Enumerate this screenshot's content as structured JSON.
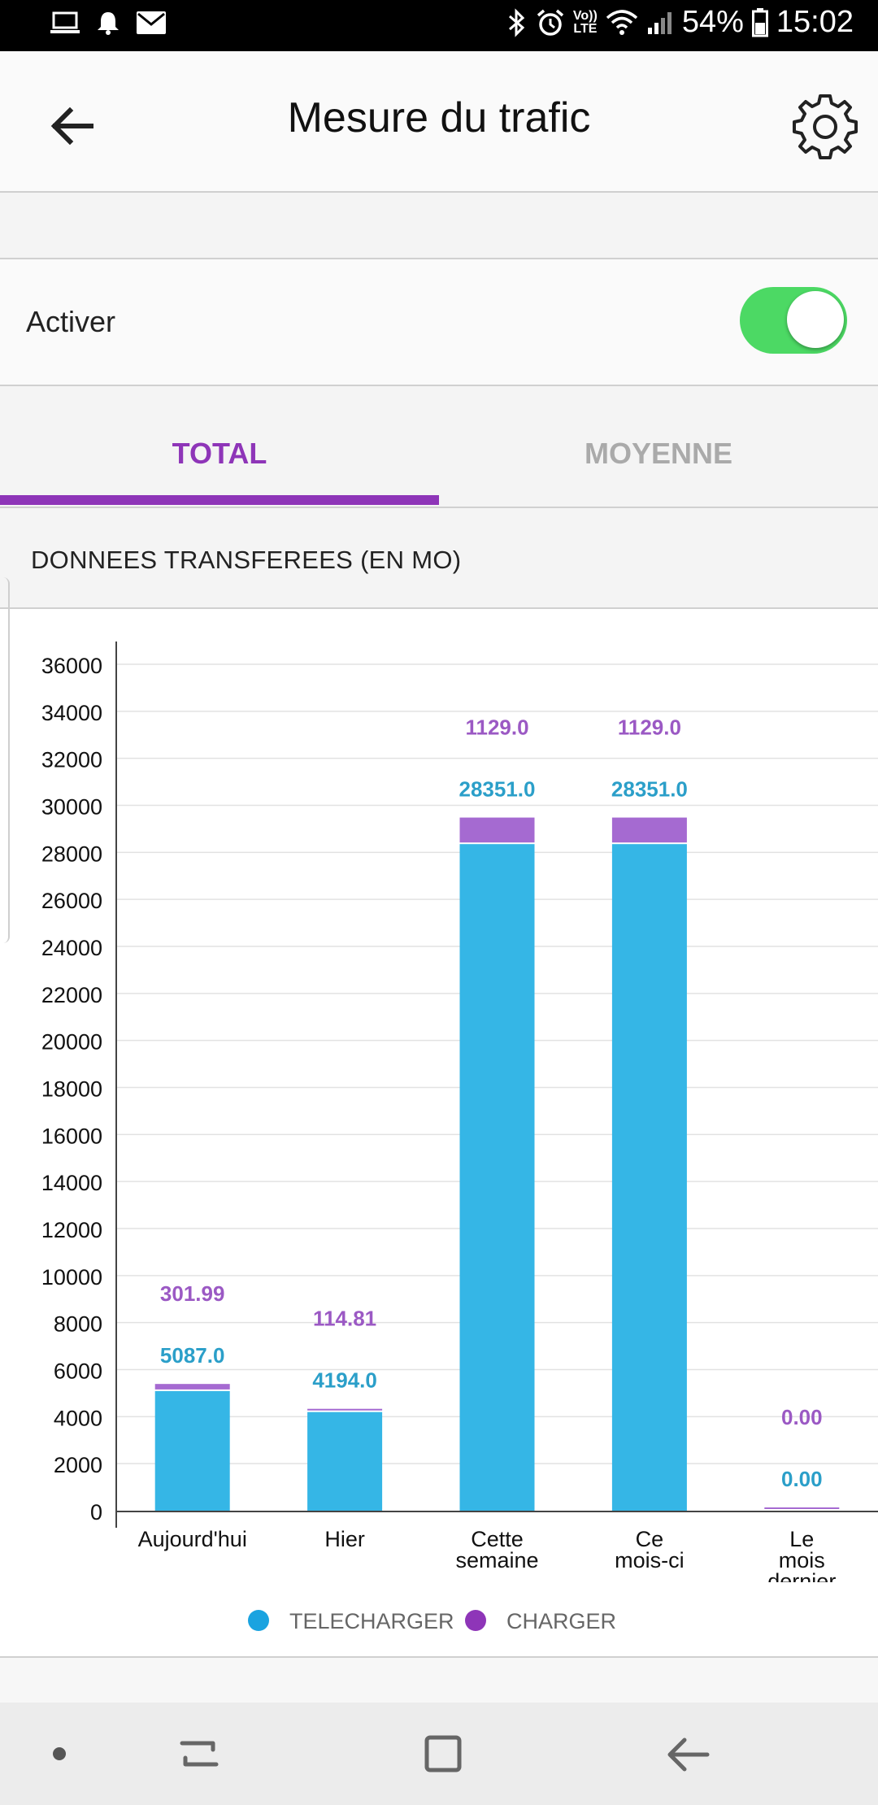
{
  "status_bar": {
    "left_icons": [
      "laptop-icon",
      "bell-icon",
      "mail-icon"
    ],
    "right_icons": [
      "bluetooth-icon",
      "alarm-icon",
      "volte-icon",
      "wifi-icon",
      "signal-icon"
    ],
    "volte_top": "Vo))",
    "volte_bottom": "LTE",
    "battery_percent": "54%",
    "time": "15:02"
  },
  "app_bar": {
    "title": "Mesure du trafic",
    "back_icon": "arrow-left-icon",
    "settings_icon": "gear-icon"
  },
  "activate": {
    "label": "Activer",
    "toggle_on": true,
    "toggle_color": "#4cd964"
  },
  "tabs": [
    {
      "label": "TOTAL",
      "selected": true
    },
    {
      "label": "MOYENNE",
      "selected": false
    }
  ],
  "accent_color": "#8e35b8",
  "section_title": "DONNEES TRANSFEREES (EN MO)",
  "chart_data": {
    "type": "bar",
    "stacked": true,
    "categories": [
      [
        "Aujourd'hui"
      ],
      [
        "Hier"
      ],
      [
        "Cette",
        "semaine"
      ],
      [
        "Ce",
        "mois-ci"
      ],
      [
        "Le",
        "mois",
        "dernier"
      ]
    ],
    "series": [
      {
        "name": "TELECHARGER",
        "color": "#35b6e6",
        "label_color": "#2b9fc9",
        "values": [
          5087.0,
          4194.0,
          28351.0,
          28351.0,
          0.0
        ],
        "labels": [
          "5087.0",
          "4194.0",
          "28351.0",
          "28351.0",
          "0.00"
        ]
      },
      {
        "name": "CHARGER",
        "color": "#a56ad1",
        "label_color": "#9b59c4",
        "values": [
          301.99,
          114.81,
          1129.0,
          1129.0,
          0.0
        ],
        "labels": [
          "301.99",
          "114.81",
          "1129.0",
          "1129.0",
          "0.00"
        ]
      }
    ],
    "ylim": [
      0,
      36000
    ],
    "yticks": [
      0,
      2000,
      4000,
      6000,
      8000,
      10000,
      12000,
      14000,
      16000,
      18000,
      20000,
      22000,
      24000,
      26000,
      28000,
      30000,
      32000,
      34000,
      36000
    ],
    "grid": true,
    "legend": "bottom-center"
  },
  "nav_bar": {
    "icons": [
      "dot-icon",
      "recent-apps-icon",
      "home-icon",
      "back-icon"
    ]
  }
}
